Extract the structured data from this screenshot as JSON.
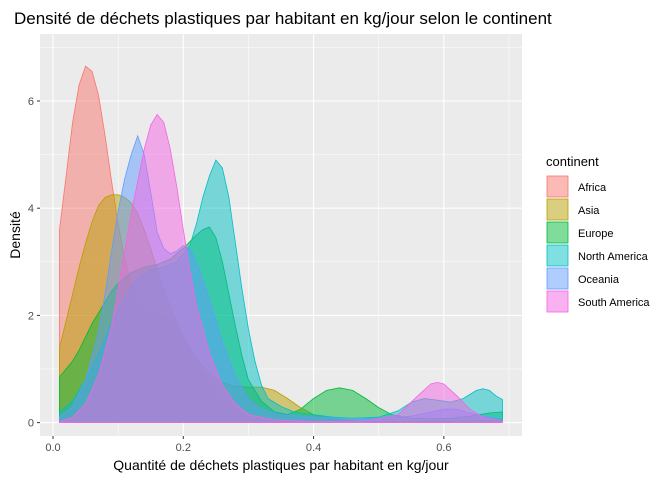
{
  "chart_data": {
    "type": "area",
    "title": "Densité de déchets plastiques par habitant en kg/jour selon le continent",
    "xlabel": "Quantité de déchets plastiques par habitant en kg/jour",
    "ylabel": "Densité",
    "xlim": [
      -0.02,
      0.72
    ],
    "ylim": [
      -0.25,
      7.25
    ],
    "x_ticks": [
      0.0,
      0.2,
      0.4,
      0.6
    ],
    "x_tick_labels": [
      "0.0",
      "0.2",
      "0.4",
      "0.6"
    ],
    "y_ticks": [
      0,
      2,
      4,
      6
    ],
    "y_tick_labels": [
      "0",
      "2",
      "4",
      "6"
    ],
    "grid": true,
    "background": "#ebebeb",
    "legend": {
      "title": "continent",
      "position": "right"
    },
    "series": [
      {
        "name": "Africa",
        "color": "#f8766d",
        "points": [
          [
            0.01,
            3.6
          ],
          [
            0.02,
            4.6
          ],
          [
            0.03,
            5.6
          ],
          [
            0.04,
            6.3
          ],
          [
            0.05,
            6.65
          ],
          [
            0.06,
            6.55
          ],
          [
            0.07,
            6.1
          ],
          [
            0.08,
            5.35
          ],
          [
            0.09,
            4.5
          ],
          [
            0.1,
            3.7
          ],
          [
            0.11,
            3.05
          ],
          [
            0.12,
            2.6
          ],
          [
            0.13,
            2.35
          ],
          [
            0.14,
            2.2
          ],
          [
            0.15,
            2.1
          ],
          [
            0.16,
            2.05
          ],
          [
            0.17,
            2.0
          ],
          [
            0.18,
            1.9
          ],
          [
            0.19,
            1.75
          ],
          [
            0.2,
            1.55
          ],
          [
            0.22,
            1.1
          ],
          [
            0.24,
            0.75
          ],
          [
            0.26,
            0.45
          ],
          [
            0.28,
            0.25
          ],
          [
            0.3,
            0.12
          ],
          [
            0.33,
            0.05
          ],
          [
            0.36,
            0.02
          ],
          [
            0.4,
            0.01
          ]
        ]
      },
      {
        "name": "Asia",
        "color": "#b79f00",
        "points": [
          [
            0.01,
            1.4
          ],
          [
            0.02,
            1.9
          ],
          [
            0.03,
            2.4
          ],
          [
            0.04,
            2.9
          ],
          [
            0.05,
            3.35
          ],
          [
            0.06,
            3.75
          ],
          [
            0.07,
            4.05
          ],
          [
            0.08,
            4.2
          ],
          [
            0.09,
            4.25
          ],
          [
            0.1,
            4.25
          ],
          [
            0.11,
            4.2
          ],
          [
            0.12,
            4.1
          ],
          [
            0.13,
            3.9
          ],
          [
            0.14,
            3.6
          ],
          [
            0.15,
            3.25
          ],
          [
            0.16,
            2.85
          ],
          [
            0.18,
            2.15
          ],
          [
            0.2,
            1.6
          ],
          [
            0.22,
            1.2
          ],
          [
            0.24,
            0.9
          ],
          [
            0.26,
            0.75
          ],
          [
            0.28,
            0.68
          ],
          [
            0.3,
            0.66
          ],
          [
            0.32,
            0.66
          ],
          [
            0.34,
            0.6
          ],
          [
            0.36,
            0.45
          ],
          [
            0.38,
            0.28
          ],
          [
            0.4,
            0.15
          ],
          [
            0.43,
            0.06
          ],
          [
            0.48,
            0.02
          ],
          [
            0.55,
            0.02
          ],
          [
            0.62,
            0.03
          ],
          [
            0.66,
            0.04
          ],
          [
            0.69,
            0.05
          ]
        ]
      },
      {
        "name": "Europe",
        "color": "#00ba38",
        "points": [
          [
            0.01,
            0.85
          ],
          [
            0.02,
            1.0
          ],
          [
            0.03,
            1.15
          ],
          [
            0.04,
            1.35
          ],
          [
            0.05,
            1.6
          ],
          [
            0.06,
            1.85
          ],
          [
            0.07,
            2.05
          ],
          [
            0.08,
            2.25
          ],
          [
            0.09,
            2.45
          ],
          [
            0.1,
            2.6
          ],
          [
            0.12,
            2.8
          ],
          [
            0.14,
            2.9
          ],
          [
            0.16,
            2.95
          ],
          [
            0.18,
            3.05
          ],
          [
            0.2,
            3.25
          ],
          [
            0.22,
            3.5
          ],
          [
            0.23,
            3.6
          ],
          [
            0.24,
            3.65
          ],
          [
            0.25,
            3.45
          ],
          [
            0.26,
            3.0
          ],
          [
            0.27,
            2.4
          ],
          [
            0.28,
            1.8
          ],
          [
            0.29,
            1.25
          ],
          [
            0.3,
            0.8
          ],
          [
            0.32,
            0.4
          ],
          [
            0.34,
            0.2
          ],
          [
            0.36,
            0.15
          ],
          [
            0.38,
            0.25
          ],
          [
            0.4,
            0.45
          ],
          [
            0.42,
            0.6
          ],
          [
            0.44,
            0.65
          ],
          [
            0.46,
            0.6
          ],
          [
            0.48,
            0.45
          ],
          [
            0.5,
            0.28
          ],
          [
            0.52,
            0.15
          ],
          [
            0.55,
            0.08
          ],
          [
            0.58,
            0.07
          ],
          [
            0.61,
            0.08
          ],
          [
            0.64,
            0.12
          ],
          [
            0.67,
            0.18
          ],
          [
            0.69,
            0.2
          ]
        ]
      },
      {
        "name": "North America",
        "color": "#00bfc4",
        "points": [
          [
            0.01,
            0.2
          ],
          [
            0.03,
            0.4
          ],
          [
            0.05,
            0.8
          ],
          [
            0.07,
            1.3
          ],
          [
            0.09,
            1.85
          ],
          [
            0.11,
            2.35
          ],
          [
            0.13,
            2.7
          ],
          [
            0.15,
            2.85
          ],
          [
            0.17,
            2.9
          ],
          [
            0.19,
            3.0
          ],
          [
            0.21,
            3.3
          ],
          [
            0.22,
            3.7
          ],
          [
            0.23,
            4.2
          ],
          [
            0.24,
            4.6
          ],
          [
            0.25,
            4.9
          ],
          [
            0.26,
            4.75
          ],
          [
            0.27,
            4.2
          ],
          [
            0.28,
            3.35
          ],
          [
            0.29,
            2.5
          ],
          [
            0.3,
            1.75
          ],
          [
            0.31,
            1.15
          ],
          [
            0.32,
            0.7
          ],
          [
            0.33,
            0.45
          ],
          [
            0.35,
            0.3
          ],
          [
            0.37,
            0.2
          ],
          [
            0.4,
            0.15
          ],
          [
            0.43,
            0.1
          ],
          [
            0.46,
            0.08
          ],
          [
            0.5,
            0.1
          ],
          [
            0.53,
            0.22
          ],
          [
            0.55,
            0.38
          ],
          [
            0.57,
            0.45
          ],
          [
            0.59,
            0.42
          ],
          [
            0.61,
            0.38
          ],
          [
            0.63,
            0.45
          ],
          [
            0.65,
            0.6
          ],
          [
            0.66,
            0.63
          ],
          [
            0.67,
            0.6
          ],
          [
            0.68,
            0.5
          ],
          [
            0.69,
            0.43
          ]
        ]
      },
      {
        "name": "Oceania",
        "color": "#619cff",
        "points": [
          [
            0.01,
            0.1
          ],
          [
            0.03,
            0.3
          ],
          [
            0.05,
            0.8
          ],
          [
            0.07,
            1.7
          ],
          [
            0.08,
            2.4
          ],
          [
            0.09,
            3.2
          ],
          [
            0.1,
            3.95
          ],
          [
            0.11,
            4.55
          ],
          [
            0.12,
            5.0
          ],
          [
            0.13,
            5.35
          ],
          [
            0.14,
            5.0
          ],
          [
            0.15,
            4.3
          ],
          [
            0.16,
            3.55
          ],
          [
            0.17,
            3.25
          ],
          [
            0.18,
            3.15
          ],
          [
            0.19,
            3.2
          ],
          [
            0.2,
            3.3
          ],
          [
            0.21,
            3.25
          ],
          [
            0.22,
            3.0
          ],
          [
            0.24,
            2.3
          ],
          [
            0.26,
            1.5
          ],
          [
            0.28,
            0.85
          ],
          [
            0.3,
            0.45
          ],
          [
            0.32,
            0.25
          ],
          [
            0.35,
            0.15
          ],
          [
            0.4,
            0.1
          ],
          [
            0.45,
            0.08
          ],
          [
            0.5,
            0.08
          ],
          [
            0.55,
            0.12
          ],
          [
            0.58,
            0.2
          ],
          [
            0.6,
            0.25
          ],
          [
            0.62,
            0.25
          ],
          [
            0.64,
            0.18
          ],
          [
            0.67,
            0.1
          ],
          [
            0.69,
            0.06
          ]
        ]
      },
      {
        "name": "South America",
        "color": "#f564e3",
        "points": [
          [
            0.01,
            0.02
          ],
          [
            0.03,
            0.1
          ],
          [
            0.05,
            0.35
          ],
          [
            0.07,
            0.9
          ],
          [
            0.09,
            1.8
          ],
          [
            0.1,
            2.5
          ],
          [
            0.11,
            3.2
          ],
          [
            0.12,
            3.9
          ],
          [
            0.13,
            4.5
          ],
          [
            0.14,
            5.1
          ],
          [
            0.15,
            5.55
          ],
          [
            0.16,
            5.75
          ],
          [
            0.17,
            5.6
          ],
          [
            0.18,
            5.1
          ],
          [
            0.19,
            4.4
          ],
          [
            0.2,
            3.6
          ],
          [
            0.21,
            2.85
          ],
          [
            0.22,
            2.2
          ],
          [
            0.24,
            1.3
          ],
          [
            0.26,
            0.7
          ],
          [
            0.28,
            0.35
          ],
          [
            0.3,
            0.15
          ],
          [
            0.34,
            0.05
          ],
          [
            0.4,
            0.02
          ],
          [
            0.48,
            0.03
          ],
          [
            0.53,
            0.15
          ],
          [
            0.56,
            0.5
          ],
          [
            0.58,
            0.72
          ],
          [
            0.59,
            0.75
          ],
          [
            0.6,
            0.72
          ],
          [
            0.62,
            0.5
          ],
          [
            0.64,
            0.25
          ],
          [
            0.66,
            0.1
          ],
          [
            0.69,
            0.02
          ]
        ]
      }
    ]
  }
}
